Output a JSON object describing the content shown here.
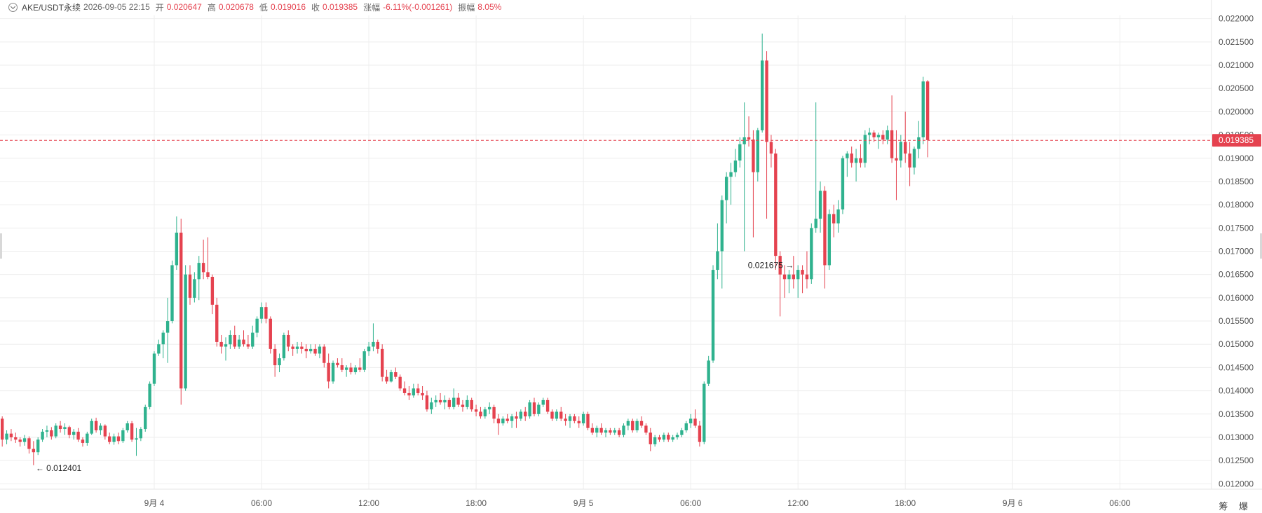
{
  "header": {
    "symbol": "AKE/USDT永续",
    "datetime": "2026-09-05 22:15",
    "open_label": "开",
    "open_value": "0.020647",
    "high_label": "高",
    "high_value": "0.020678",
    "low_label": "低",
    "low_value": "0.019016",
    "close_label": "收",
    "close_value": "0.019385",
    "change_label": "涨幅",
    "change_value": "-6.11%(-0.001261)",
    "amplitude_label": "振幅",
    "amplitude_value": "8.05%"
  },
  "colors": {
    "up": "#2fb28e",
    "down": "#e5424f",
    "grid": "#eeeeee",
    "axis_text": "#555555"
  },
  "tools": {
    "label": "筹 爆"
  },
  "chart_data": {
    "type": "candlestick",
    "interval": "15m",
    "ylim": [
      0.0119,
      0.0221
    ],
    "yticks": [
      "0.012000",
      "0.012500",
      "0.013000",
      "0.013500",
      "0.014000",
      "0.014500",
      "0.015000",
      "0.015500",
      "0.016000",
      "0.016500",
      "0.017000",
      "0.017500",
      "0.018000",
      "0.018500",
      "0.019000",
      "0.019500",
      "0.020000",
      "0.020500",
      "0.021000",
      "0.021500",
      "0.022000"
    ],
    "xticks": [
      {
        "label": "9月 4",
        "bar": 34
      },
      {
        "label": "06:00",
        "bar": 58
      },
      {
        "label": "12:00",
        "bar": 82
      },
      {
        "label": "18:00",
        "bar": 106
      },
      {
        "label": "9月 5",
        "bar": 130
      },
      {
        "label": "06:00",
        "bar": 154
      },
      {
        "label": "12:00",
        "bar": 178
      },
      {
        "label": "18:00",
        "bar": 202
      },
      {
        "label": "9月 6",
        "bar": 226
      },
      {
        "label": "06:00",
        "bar": 250
      }
    ],
    "total_slots": 271,
    "last_price": 0.019385,
    "last_price_label": "0.019385",
    "max_marker": {
      "label": "0.021675",
      "bar": 178
    },
    "min_marker": {
      "label": "0.012401",
      "bar": 7
    },
    "candles": [
      [
        0.0134,
        0.01345,
        0.0128,
        0.01295
      ],
      [
        0.01295,
        0.01315,
        0.01285,
        0.01308
      ],
      [
        0.01308,
        0.01318,
        0.01292,
        0.013
      ],
      [
        0.013,
        0.0131,
        0.01288,
        0.01295
      ],
      [
        0.01295,
        0.013,
        0.0128,
        0.0129
      ],
      [
        0.0129,
        0.01305,
        0.01282,
        0.01298
      ],
      [
        0.01298,
        0.01302,
        0.01265,
        0.01275
      ],
      [
        0.01275,
        0.01292,
        0.0124,
        0.01268
      ],
      [
        0.01268,
        0.013,
        0.01262,
        0.01295
      ],
      [
        0.01295,
        0.01318,
        0.0129,
        0.01312
      ],
      [
        0.01312,
        0.01325,
        0.013,
        0.01315
      ],
      [
        0.01315,
        0.01322,
        0.01295,
        0.01302
      ],
      [
        0.01302,
        0.0133,
        0.01298,
        0.01325
      ],
      [
        0.01325,
        0.01335,
        0.0131,
        0.01318
      ],
      [
        0.01318,
        0.0133,
        0.01305,
        0.01322
      ],
      [
        0.01322,
        0.01325,
        0.01298,
        0.01305
      ],
      [
        0.01305,
        0.01318,
        0.01295,
        0.01312
      ],
      [
        0.01312,
        0.0132,
        0.0129,
        0.01295
      ],
      [
        0.01295,
        0.013,
        0.0128,
        0.01288
      ],
      [
        0.01288,
        0.01312,
        0.01282,
        0.01308
      ],
      [
        0.01308,
        0.0134,
        0.01305,
        0.01335
      ],
      [
        0.01335,
        0.01342,
        0.0131,
        0.01315
      ],
      [
        0.01315,
        0.0133,
        0.01305,
        0.01325
      ],
      [
        0.01325,
        0.01328,
        0.01295,
        0.01302
      ],
      [
        0.01302,
        0.0131,
        0.01285,
        0.0129
      ],
      [
        0.0129,
        0.01308,
        0.01284,
        0.01302
      ],
      [
        0.01302,
        0.0131,
        0.01285,
        0.01292
      ],
      [
        0.01292,
        0.0132,
        0.01288,
        0.01315
      ],
      [
        0.01315,
        0.01335,
        0.0131,
        0.0133
      ],
      [
        0.0133,
        0.01335,
        0.0129,
        0.01295
      ],
      [
        0.01295,
        0.0132,
        0.0126,
        0.01298
      ],
      [
        0.01298,
        0.01322,
        0.01292,
        0.01318
      ],
      [
        0.01318,
        0.0137,
        0.01312,
        0.01365
      ],
      [
        0.01365,
        0.0142,
        0.0136,
        0.01415
      ],
      [
        0.01415,
        0.01485,
        0.0141,
        0.0148
      ],
      [
        0.0148,
        0.0151,
        0.01475,
        0.015
      ],
      [
        0.015,
        0.0153,
        0.0147,
        0.01525
      ],
      [
        0.01525,
        0.016,
        0.0146,
        0.0155
      ],
      [
        0.0155,
        0.0168,
        0.01545,
        0.0167
      ],
      [
        0.0167,
        0.01775,
        0.0166,
        0.0174
      ],
      [
        0.0174,
        0.0177,
        0.0137,
        0.01405
      ],
      [
        0.01405,
        0.0167,
        0.014,
        0.0165
      ],
      [
        0.0165,
        0.0167,
        0.01585,
        0.016
      ],
      [
        0.016,
        0.01655,
        0.0159,
        0.0164
      ],
      [
        0.0164,
        0.0169,
        0.01595,
        0.01675
      ],
      [
        0.01675,
        0.01725,
        0.0164,
        0.01655
      ],
      [
        0.01655,
        0.0173,
        0.0164,
        0.01645
      ],
      [
        0.01645,
        0.0165,
        0.01565,
        0.01585
      ],
      [
        0.01585,
        0.016,
        0.01495,
        0.01505
      ],
      [
        0.01505,
        0.0152,
        0.0148,
        0.01495
      ],
      [
        0.01495,
        0.01515,
        0.01465,
        0.015
      ],
      [
        0.015,
        0.0153,
        0.0149,
        0.0152
      ],
      [
        0.0152,
        0.0154,
        0.0149,
        0.01495
      ],
      [
        0.01495,
        0.0152,
        0.0149,
        0.0151
      ],
      [
        0.0151,
        0.0153,
        0.01495,
        0.015
      ],
      [
        0.015,
        0.0152,
        0.0149,
        0.01495
      ],
      [
        0.01495,
        0.0154,
        0.0149,
        0.01525
      ],
      [
        0.01525,
        0.0156,
        0.01515,
        0.01555
      ],
      [
        0.01555,
        0.0159,
        0.01545,
        0.0158
      ],
      [
        0.0158,
        0.0159,
        0.01545,
        0.01555
      ],
      [
        0.01555,
        0.0156,
        0.0148,
        0.0149
      ],
      [
        0.0149,
        0.015,
        0.0143,
        0.01455
      ],
      [
        0.01455,
        0.0148,
        0.0144,
        0.0147
      ],
      [
        0.0147,
        0.01525,
        0.01465,
        0.0152
      ],
      [
        0.0152,
        0.0153,
        0.01485,
        0.01495
      ],
      [
        0.01495,
        0.015,
        0.01475,
        0.0149
      ],
      [
        0.0149,
        0.01505,
        0.0148,
        0.01495
      ],
      [
        0.01495,
        0.01505,
        0.0148,
        0.0149
      ],
      [
        0.0149,
        0.015,
        0.0147,
        0.01485
      ],
      [
        0.01485,
        0.015,
        0.0148,
        0.0149
      ],
      [
        0.0149,
        0.015,
        0.01475,
        0.0148
      ],
      [
        0.0148,
        0.015,
        0.0147,
        0.01495
      ],
      [
        0.01495,
        0.015,
        0.0145,
        0.0146
      ],
      [
        0.0146,
        0.0148,
        0.01405,
        0.0142
      ],
      [
        0.0142,
        0.01465,
        0.01415,
        0.0146
      ],
      [
        0.0146,
        0.0147,
        0.0145,
        0.01455
      ],
      [
        0.01455,
        0.0147,
        0.0144,
        0.01445
      ],
      [
        0.01445,
        0.01455,
        0.0143,
        0.0145
      ],
      [
        0.0145,
        0.0146,
        0.01435,
        0.0144
      ],
      [
        0.0144,
        0.01455,
        0.01435,
        0.0145
      ],
      [
        0.0145,
        0.0147,
        0.0144,
        0.01445
      ],
      [
        0.01445,
        0.0149,
        0.0144,
        0.01485
      ],
      [
        0.01485,
        0.01505,
        0.01475,
        0.01495
      ],
      [
        0.01495,
        0.01545,
        0.01485,
        0.01505
      ],
      [
        0.01505,
        0.0151,
        0.0148,
        0.0149
      ],
      [
        0.0149,
        0.015,
        0.0142,
        0.0143
      ],
      [
        0.0143,
        0.01445,
        0.01415,
        0.0142
      ],
      [
        0.0142,
        0.01445,
        0.01418,
        0.0144
      ],
      [
        0.0144,
        0.0145,
        0.01425,
        0.0143
      ],
      [
        0.0143,
        0.01435,
        0.014,
        0.01405
      ],
      [
        0.01405,
        0.0142,
        0.0139,
        0.01395
      ],
      [
        0.01395,
        0.0141,
        0.0138,
        0.0139
      ],
      [
        0.0139,
        0.01415,
        0.01385,
        0.01405
      ],
      [
        0.01405,
        0.01415,
        0.0139,
        0.01395
      ],
      [
        0.01395,
        0.0141,
        0.0138,
        0.0139
      ],
      [
        0.0139,
        0.014,
        0.01355,
        0.0136
      ],
      [
        0.0136,
        0.01385,
        0.0135,
        0.01375
      ],
      [
        0.01375,
        0.0139,
        0.01365,
        0.0138
      ],
      [
        0.0138,
        0.01395,
        0.0137,
        0.01375
      ],
      [
        0.01375,
        0.0139,
        0.0136,
        0.0138
      ],
      [
        0.0138,
        0.01385,
        0.0136,
        0.01365
      ],
      [
        0.01365,
        0.01405,
        0.0136,
        0.01385
      ],
      [
        0.01385,
        0.01395,
        0.01365,
        0.0137
      ],
      [
        0.0137,
        0.0138,
        0.01355,
        0.01365
      ],
      [
        0.01365,
        0.0139,
        0.0136,
        0.0138
      ],
      [
        0.0138,
        0.01385,
        0.01355,
        0.0136
      ],
      [
        0.0136,
        0.0137,
        0.01345,
        0.01355
      ],
      [
        0.01355,
        0.01365,
        0.0134,
        0.01345
      ],
      [
        0.01345,
        0.01365,
        0.0134,
        0.0136
      ],
      [
        0.0136,
        0.01375,
        0.0135,
        0.01365
      ],
      [
        0.01365,
        0.0137,
        0.0133,
        0.0134
      ],
      [
        0.0134,
        0.0135,
        0.01305,
        0.0133
      ],
      [
        0.0133,
        0.01345,
        0.01325,
        0.0134
      ],
      [
        0.0134,
        0.0135,
        0.0133,
        0.01335
      ],
      [
        0.01335,
        0.0135,
        0.0132,
        0.01345
      ],
      [
        0.01345,
        0.01355,
        0.0132,
        0.0134
      ],
      [
        0.0134,
        0.0136,
        0.01335,
        0.01355
      ],
      [
        0.01355,
        0.01365,
        0.01335,
        0.01345
      ],
      [
        0.01345,
        0.0138,
        0.0134,
        0.01375
      ],
      [
        0.01375,
        0.01385,
        0.01345,
        0.0135
      ],
      [
        0.0135,
        0.01375,
        0.01345,
        0.0137
      ],
      [
        0.0137,
        0.01385,
        0.01365,
        0.0138
      ],
      [
        0.0138,
        0.01385,
        0.0135,
        0.01355
      ],
      [
        0.01355,
        0.0136,
        0.01335,
        0.0134
      ],
      [
        0.0134,
        0.0136,
        0.01335,
        0.01355
      ],
      [
        0.01355,
        0.01365,
        0.01335,
        0.0134
      ],
      [
        0.0134,
        0.0135,
        0.01325,
        0.01335
      ],
      [
        0.01335,
        0.0135,
        0.0132,
        0.01345
      ],
      [
        0.01345,
        0.0135,
        0.0133,
        0.01335
      ],
      [
        0.01335,
        0.01345,
        0.0132,
        0.0133
      ],
      [
        0.0133,
        0.01355,
        0.01325,
        0.0135
      ],
      [
        0.0135,
        0.01355,
        0.01315,
        0.0132
      ],
      [
        0.0132,
        0.0133,
        0.01305,
        0.0131
      ],
      [
        0.0131,
        0.01325,
        0.013,
        0.0132
      ],
      [
        0.0132,
        0.0133,
        0.01305,
        0.0131
      ],
      [
        0.0131,
        0.0132,
        0.013,
        0.01315
      ],
      [
        0.01315,
        0.0132,
        0.01305,
        0.0131
      ],
      [
        0.0131,
        0.0132,
        0.01305,
        0.01315
      ],
      [
        0.01315,
        0.0132,
        0.013,
        0.01305
      ],
      [
        0.01305,
        0.0133,
        0.013,
        0.01325
      ],
      [
        0.01325,
        0.0134,
        0.01315,
        0.01335
      ],
      [
        0.01335,
        0.0134,
        0.0131,
        0.01315
      ],
      [
        0.01315,
        0.0134,
        0.0131,
        0.01335
      ],
      [
        0.01335,
        0.01345,
        0.0132,
        0.01325
      ],
      [
        0.01325,
        0.0133,
        0.01305,
        0.0131
      ],
      [
        0.0131,
        0.0132,
        0.0127,
        0.01285
      ],
      [
        0.01285,
        0.01305,
        0.0128,
        0.013
      ],
      [
        0.013,
        0.01305,
        0.0129,
        0.01295
      ],
      [
        0.01295,
        0.0131,
        0.0129,
        0.01305
      ],
      [
        0.01305,
        0.0131,
        0.0129,
        0.01295
      ],
      [
        0.01295,
        0.01305,
        0.0129,
        0.013
      ],
      [
        0.013,
        0.0131,
        0.01295,
        0.01305
      ],
      [
        0.01305,
        0.0132,
        0.013,
        0.01315
      ],
      [
        0.01315,
        0.01335,
        0.0131,
        0.0133
      ],
      [
        0.0133,
        0.0135,
        0.0132,
        0.0134
      ],
      [
        0.0134,
        0.0136,
        0.0132,
        0.01325
      ],
      [
        0.01325,
        0.01335,
        0.0128,
        0.0129
      ],
      [
        0.0129,
        0.0142,
        0.01285,
        0.01415
      ],
      [
        0.01415,
        0.01475,
        0.0141,
        0.01465
      ],
      [
        0.01465,
        0.0167,
        0.0146,
        0.0166
      ],
      [
        0.0166,
        0.0176,
        0.0164,
        0.017
      ],
      [
        0.017,
        0.0182,
        0.0162,
        0.0181
      ],
      [
        0.0181,
        0.0187,
        0.0176,
        0.0186
      ],
      [
        0.0186,
        0.0189,
        0.018,
        0.0187
      ],
      [
        0.0187,
        0.0192,
        0.0186,
        0.01895
      ],
      [
        0.01895,
        0.01945,
        0.0188,
        0.0193
      ],
      [
        0.0193,
        0.0202,
        0.017,
        0.01945
      ],
      [
        0.01945,
        0.0199,
        0.01925,
        0.0194
      ],
      [
        0.0194,
        0.0196,
        0.0173,
        0.0187
      ],
      [
        0.0187,
        0.01965,
        0.0185,
        0.0196
      ],
      [
        0.0196,
        0.02168,
        0.01955,
        0.0211
      ],
      [
        0.0211,
        0.0213,
        0.0177,
        0.01935
      ],
      [
        0.01935,
        0.0195,
        0.0188,
        0.0191
      ],
      [
        0.0191,
        0.0192,
        0.0166,
        0.0169
      ],
      [
        0.0169,
        0.017,
        0.0156,
        0.0165
      ],
      [
        0.0165,
        0.0167,
        0.016,
        0.0164
      ],
      [
        0.0164,
        0.0166,
        0.0161,
        0.0165
      ],
      [
        0.0165,
        0.0169,
        0.0162,
        0.0164
      ],
      [
        0.0164,
        0.0167,
        0.016,
        0.0166
      ],
      [
        0.0166,
        0.0167,
        0.0161,
        0.0165
      ],
      [
        0.0165,
        0.017,
        0.0162,
        0.0164
      ],
      [
        0.0164,
        0.0176,
        0.0163,
        0.0175
      ],
      [
        0.0175,
        0.0202,
        0.0174,
        0.0177
      ],
      [
        0.0177,
        0.0185,
        0.0174,
        0.0183
      ],
      [
        0.0183,
        0.0184,
        0.0162,
        0.0167
      ],
      [
        0.0167,
        0.0179,
        0.0166,
        0.0178
      ],
      [
        0.0178,
        0.018,
        0.0173,
        0.0176
      ],
      [
        0.0176,
        0.0181,
        0.0174,
        0.0179
      ],
      [
        0.0179,
        0.01905,
        0.0178,
        0.019
      ],
      [
        0.019,
        0.01915,
        0.0186,
        0.0191
      ],
      [
        0.0191,
        0.01925,
        0.0188,
        0.0189
      ],
      [
        0.0189,
        0.0192,
        0.0185,
        0.019
      ],
      [
        0.019,
        0.0193,
        0.0188,
        0.0189
      ],
      [
        0.0189,
        0.0196,
        0.0188,
        0.0195
      ],
      [
        0.0195,
        0.01965,
        0.0193,
        0.01955
      ],
      [
        0.01955,
        0.0196,
        0.01935,
        0.01945
      ],
      [
        0.01945,
        0.01955,
        0.0192,
        0.0195
      ],
      [
        0.0195,
        0.0196,
        0.0193,
        0.0194
      ],
      [
        0.0194,
        0.0197,
        0.0193,
        0.0196
      ],
      [
        0.0196,
        0.02035,
        0.0189,
        0.019
      ],
      [
        0.019,
        0.0196,
        0.0181,
        0.01895
      ],
      [
        0.01895,
        0.0195,
        0.0188,
        0.01935
      ],
      [
        0.01935,
        0.02,
        0.0189,
        0.0191
      ],
      [
        0.0191,
        0.01935,
        0.0184,
        0.0188
      ],
      [
        0.0188,
        0.01925,
        0.01865,
        0.0192
      ],
      [
        0.0192,
        0.0198,
        0.019,
        0.01945
      ],
      [
        0.01945,
        0.02075,
        0.0193,
        0.02065
      ],
      [
        0.02065,
        0.02068,
        0.01902,
        0.01939
      ]
    ]
  }
}
